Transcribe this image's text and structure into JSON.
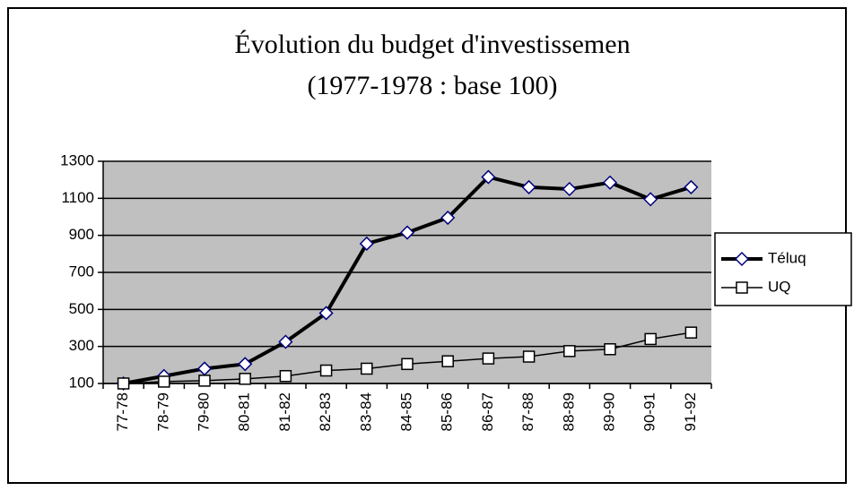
{
  "chart_data": {
    "type": "line",
    "title": "Évolution  du budget d'investissemen",
    "subtitle": "(1977-1978 : base 100)",
    "categories": [
      "77-78",
      "78-79",
      "79-80",
      "80-81",
      "81-82",
      "82-83",
      "83-84",
      "84-85",
      "85-86",
      "86-87",
      "87-88",
      "88-89",
      "89-90",
      "90-91",
      "91-92"
    ],
    "series": [
      {
        "name": "Téluq",
        "color": "#000000",
        "marker": "diamond",
        "values": [
          100,
          140,
          180,
          205,
          325,
          480,
          855,
          915,
          995,
          1215,
          1160,
          1150,
          1185,
          1095,
          1160
        ]
      },
      {
        "name": "UQ",
        "color": "#000000",
        "marker": "square",
        "values": [
          100,
          110,
          115,
          125,
          140,
          170,
          180,
          205,
          220,
          235,
          245,
          275,
          285,
          340,
          375
        ]
      }
    ],
    "ylim": [
      100,
      1300
    ],
    "yticks": [
      100,
      300,
      500,
      700,
      900,
      1100,
      1300
    ],
    "grid": true,
    "legend": "right"
  }
}
